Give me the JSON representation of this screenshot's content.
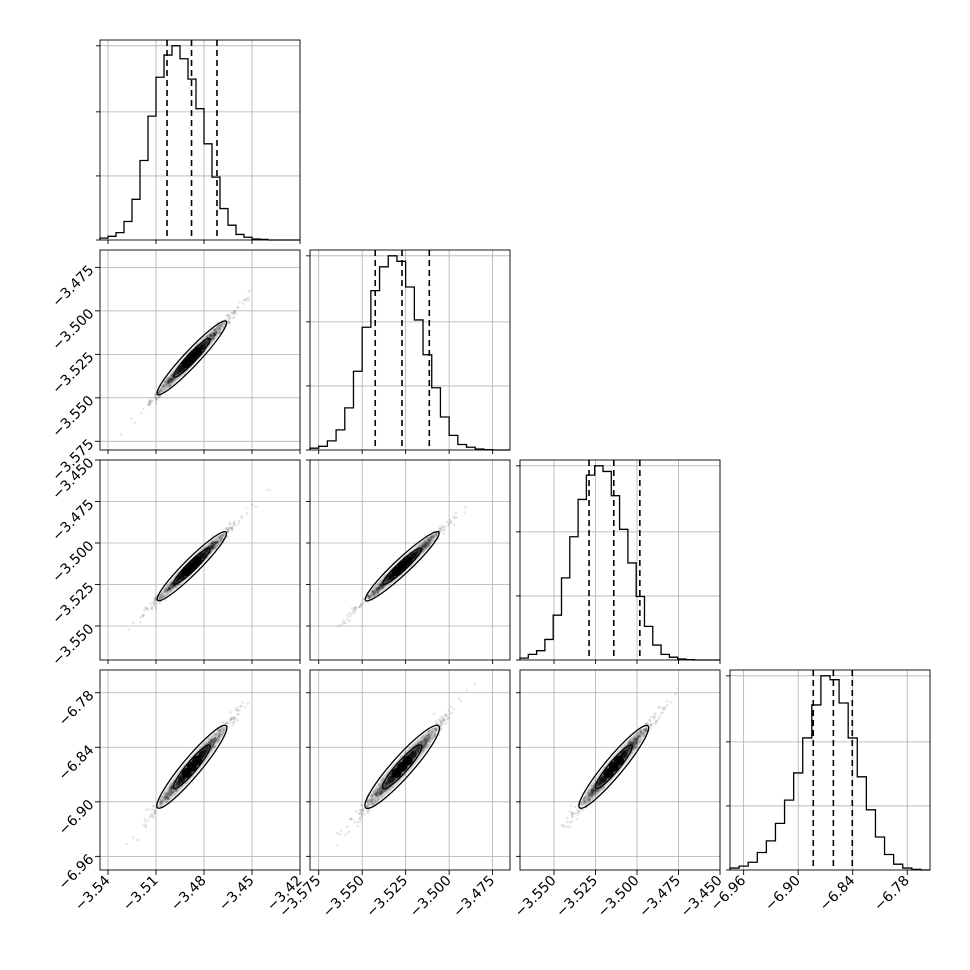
{
  "chart_data": {
    "type": "corner",
    "title": "",
    "parameters": [
      {
        "label": "",
        "range": [
          -3.545,
          -3.42
        ],
        "ticks": [
          -3.54,
          -3.51,
          -3.48,
          -3.45,
          -3.42
        ],
        "tick_labels": [
          "−3.54",
          "−3.51",
          "−3.48",
          "−3.45",
          "−3.42"
        ],
        "quantiles": [
          -3.5031,
          -3.4878,
          -3.4719
        ],
        "mean": -3.4876,
        "sd": 0.0102
      },
      {
        "label": "",
        "range": [
          -3.58,
          -3.465
        ],
        "ticks": [
          -3.575,
          -3.55,
          -3.525,
          -3.5,
          -3.475
        ],
        "tick_labels": [
          "−3.575",
          "−3.550",
          "−3.525",
          "−3.500",
          "−3.475"
        ],
        "quantiles": [
          -3.5425,
          -3.5271,
          -3.5114
        ],
        "mean": -3.527,
        "sd": 0.01
      },
      {
        "label": "",
        "range": [
          -3.5705,
          -3.45
        ],
        "ticks": [
          -3.55,
          -3.525,
          -3.5,
          -3.475,
          -3.45
        ],
        "tick_labels": [
          "−3.550",
          "−3.525",
          "−3.500",
          "−3.475",
          "−3.450"
        ],
        "quantiles": [
          -3.5289,
          -3.514,
          -3.4983
        ],
        "mean": -3.514,
        "sd": 0.0098
      },
      {
        "label": "",
        "range": [
          -6.975,
          -6.755
        ],
        "ticks": [
          -6.96,
          -6.9,
          -6.84,
          -6.78
        ],
        "tick_labels": [
          "−6.96",
          "−6.90",
          "−6.84",
          "−6.78"
        ],
        "quantiles": [
          -6.8834,
          -6.8613,
          -6.8405
        ],
        "mean": -6.8615,
        "sd": 0.0215
      }
    ],
    "histograms": [
      {
        "param": 0,
        "bin_edges": [
          -3.545,
          -3.54,
          -3.535,
          -3.53,
          -3.525,
          -3.52,
          -3.515,
          -3.51,
          -3.505,
          -3.5,
          -3.495,
          -3.49,
          -3.485,
          -3.48,
          -3.475,
          -3.47,
          -3.465,
          -3.46,
          -3.455,
          -3.45,
          -3.445,
          -3.44,
          -3.435,
          -3.43,
          -3.425,
          -3.42
        ],
        "counts": [
          1,
          2,
          4,
          10,
          22,
          43,
          67,
          88,
          100,
          105,
          98,
          87,
          71,
          52,
          34,
          17,
          8,
          3,
          1.5,
          0.5,
          0.3,
          0,
          0,
          0,
          0
        ]
      },
      {
        "param": 1,
        "bin_edges": [
          -3.58,
          -3.575,
          -3.57,
          -3.565,
          -3.56,
          -3.555,
          -3.55,
          -3.545,
          -3.54,
          -3.535,
          -3.53,
          -3.525,
          -3.52,
          -3.515,
          -3.51,
          -3.505,
          -3.5,
          -3.495,
          -3.49,
          -3.485,
          -3.48,
          -3.475,
          -3.47,
          -3.465
        ],
        "counts": [
          1,
          2,
          5,
          11,
          23,
          43,
          67,
          87,
          100,
          106,
          103,
          89,
          71,
          52,
          34,
          18,
          8,
          3,
          1.5,
          0.5,
          0.2,
          0,
          0
        ]
      },
      {
        "param": 2,
        "bin_edges": [
          -3.5705,
          -3.5655,
          -3.5605,
          -3.5555,
          -3.5505,
          -3.5455,
          -3.5405,
          -3.5355,
          -3.5305,
          -3.5255,
          -3.5205,
          -3.5155,
          -3.5105,
          -3.5055,
          -3.5005,
          -3.4955,
          -3.4905,
          -3.4855,
          -3.4805,
          -3.4755,
          -3.4705,
          -3.4655,
          -3.4605,
          -3.4555,
          -3.45
        ],
        "counts": [
          1,
          3,
          5,
          11,
          24,
          44,
          66,
          86,
          99,
          104,
          101,
          88,
          70,
          52,
          34,
          18,
          8,
          3,
          1.5,
          0.5,
          0.2,
          0,
          0,
          0
        ]
      },
      {
        "param": 3,
        "bin_edges": [
          -6.975,
          -6.965,
          -6.955,
          -6.945,
          -6.935,
          -6.925,
          -6.915,
          -6.905,
          -6.895,
          -6.885,
          -6.875,
          -6.865,
          -6.855,
          -6.845,
          -6.835,
          -6.825,
          -6.815,
          -6.805,
          -6.795,
          -6.785,
          -6.775,
          -6.765,
          -6.755
        ],
        "counts": [
          1,
          2,
          4,
          9,
          15,
          24,
          36,
          50,
          68,
          85,
          100,
          98,
          86,
          68,
          48,
          31,
          17,
          8,
          3,
          1,
          0.3,
          0
        ]
      }
    ],
    "pairs": [
      {
        "x_param": 0,
        "y_param": 1,
        "correlation": 0.995
      },
      {
        "x_param": 0,
        "y_param": 2,
        "correlation": 0.995
      },
      {
        "x_param": 1,
        "y_param": 2,
        "correlation": 0.995
      },
      {
        "x_param": 0,
        "y_param": 3,
        "correlation": 0.99
      },
      {
        "x_param": 1,
        "y_param": 3,
        "correlation": 0.985
      },
      {
        "x_param": 2,
        "y_param": 3,
        "correlation": 0.99
      }
    ],
    "grid": true,
    "colors": {
      "line": "#000000",
      "grid": "#b0b0b0",
      "density": "#000000"
    }
  }
}
